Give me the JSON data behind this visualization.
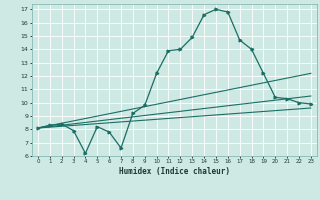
{
  "title": "",
  "xlabel": "Humidex (Indice chaleur)",
  "bg_color": "#cee8e4",
  "grid_color": "#ffffff",
  "line_color": "#1a6e64",
  "xlim": [
    -0.5,
    23.5
  ],
  "ylim": [
    6,
    17.4
  ],
  "yticks": [
    6,
    7,
    8,
    9,
    10,
    11,
    12,
    13,
    14,
    15,
    16,
    17
  ],
  "xticks": [
    0,
    1,
    2,
    3,
    4,
    5,
    6,
    7,
    8,
    9,
    10,
    11,
    12,
    13,
    14,
    15,
    16,
    17,
    18,
    19,
    20,
    21,
    22,
    23
  ],
  "series1_x": [
    0,
    1,
    2,
    3,
    4,
    5,
    6,
    7,
    8,
    9,
    10,
    11,
    12,
    13,
    14,
    15,
    16,
    17,
    18,
    19,
    20,
    21,
    22,
    23
  ],
  "series1_y": [
    8.1,
    8.3,
    8.4,
    7.9,
    6.2,
    8.2,
    7.8,
    6.6,
    9.2,
    9.8,
    12.2,
    13.9,
    14.0,
    14.9,
    16.6,
    17.0,
    16.8,
    14.7,
    14.0,
    12.2,
    10.4,
    10.3,
    10.0,
    9.9
  ],
  "series2_x": [
    0,
    23
  ],
  "series2_y": [
    8.1,
    12.2
  ],
  "series3_x": [
    0,
    23
  ],
  "series3_y": [
    8.1,
    10.5
  ],
  "series4_x": [
    0,
    23
  ],
  "series4_y": [
    8.1,
    9.6
  ]
}
